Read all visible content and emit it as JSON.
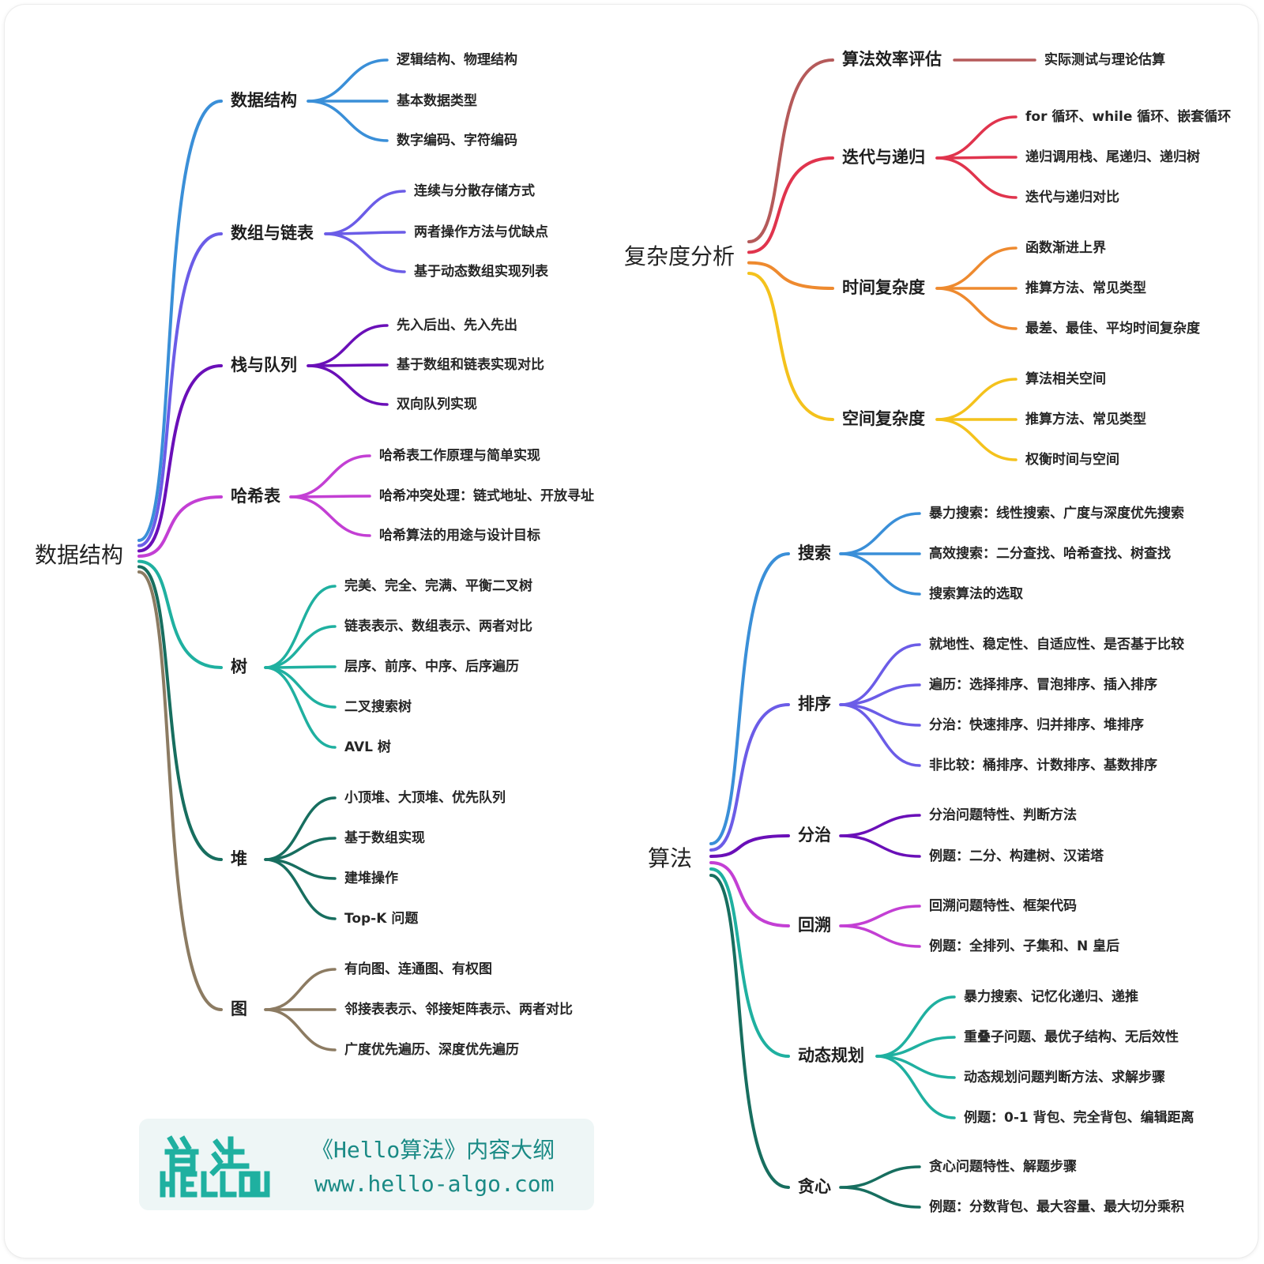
{
  "left_tree": {
    "root": "数据结构",
    "branches": [
      {
        "label": "数据结构",
        "color": "#3a8fd8",
        "leaves": [
          "逻辑结构、物理结构",
          "基本数据类型",
          "数字编码、字符编码"
        ]
      },
      {
        "label": "数组与链表",
        "color": "#6b5ce7",
        "leaves": [
          "连续与分散存储方式",
          "两者操作方法与优缺点",
          "基于动态数组实现列表"
        ]
      },
      {
        "label": "栈与队列",
        "color": "#6a0fb8",
        "leaves": [
          "先入后出、先入先出",
          "基于数组和链表实现对比",
          "双向队列实现"
        ]
      },
      {
        "label": "哈希表",
        "color": "#c33fd4",
        "leaves": [
          "哈希表工作原理与简单实现",
          "哈希冲突处理：链式地址、开放寻址",
          "哈希算法的用途与设计目标"
        ]
      },
      {
        "label": "树",
        "color": "#1fb0a0",
        "leaves": [
          "完美、完全、完满、平衡二叉树",
          "链表表示、数组表示、两者对比",
          "层序、前序、中序、后序遍历",
          "二叉搜索树",
          "AVL 树"
        ]
      },
      {
        "label": "堆",
        "color": "#176e5f",
        "leaves": [
          "小顶堆、大顶堆、优先队列",
          "基于数组实现",
          "建堆操作",
          "Top-K 问题"
        ]
      },
      {
        "label": "图",
        "color": "#8c7b62",
        "leaves": [
          "有向图、连通图、有权图",
          "邻接表表示、邻接矩阵表示、两者对比",
          "广度优先遍历、深度优先遍历"
        ]
      }
    ]
  },
  "complexity_tree": {
    "root": "复杂度分析",
    "branches": [
      {
        "label": "算法效率评估",
        "color": "#b55a5a",
        "leaves": [
          "实际测试与理论估算"
        ]
      },
      {
        "label": "迭代与递归",
        "color": "#e0344d",
        "leaves": [
          "for 循环、while 循环、嵌套循环",
          "递归调用栈、尾递归、递归树",
          "迭代与递归对比"
        ]
      },
      {
        "label": "时间复杂度",
        "color": "#ee8a2f",
        "leaves": [
          "函数渐进上界",
          "推算方法、常见类型",
          "最差、最佳、平均时间复杂度"
        ]
      },
      {
        "label": "空间复杂度",
        "color": "#f4c21c",
        "leaves": [
          "算法相关空间",
          "推算方法、常见类型",
          "权衡时间与空间"
        ]
      }
    ]
  },
  "algorithm_tree": {
    "root": "算法",
    "branches": [
      {
        "label": "搜索",
        "color": "#3a8fd8",
        "leaves": [
          "暴力搜索：线性搜索、广度与深度优先搜索",
          "高效搜索：二分查找、哈希查找、树查找",
          "搜索算法的选取"
        ]
      },
      {
        "label": "排序",
        "color": "#6b5ce7",
        "leaves": [
          "就地性、稳定性、自适应性、是否基于比较",
          "遍历：选择排序、冒泡排序、插入排序",
          "分治：快速排序、归并排序、堆排序",
          "非比较：桶排序、计数排序、基数排序"
        ]
      },
      {
        "label": "分治",
        "color": "#6a0fb8",
        "leaves": [
          "分治问题特性、判断方法",
          "例题：二分、构建树、汉诺塔"
        ]
      },
      {
        "label": "回溯",
        "color": "#c33fd4",
        "leaves": [
          "回溯问题特性、框架代码",
          "例题：全排列、子集和、N 皇后"
        ]
      },
      {
        "label": "动态规划",
        "color": "#1fb0a0",
        "leaves": [
          "暴力搜索、记忆化递归、递推",
          "重叠子问题、最优子结构、无后效性",
          "动态规划问题判断方法、求解步骤",
          "例题：0-1 背包、完全背包、编辑距离"
        ]
      },
      {
        "label": "贪心",
        "color": "#176e5f",
        "leaves": [
          "贪心问题特性、解题步骤",
          "例题：分数背包、最大容量、最大切分乘积"
        ]
      }
    ]
  },
  "logo": {
    "title": "《Hello算法》内容大纲",
    "url": "www.hello-algo.com",
    "mark_color": "#1fb0a0"
  }
}
